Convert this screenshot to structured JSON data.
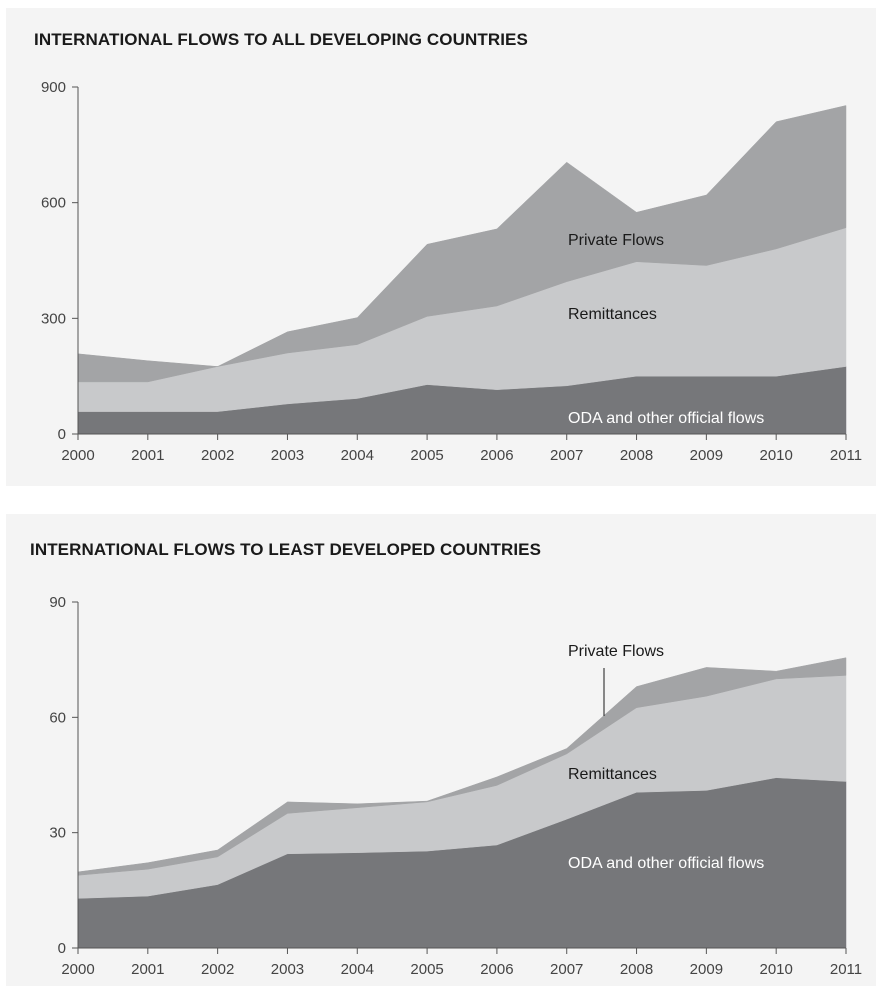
{
  "chart_data": [
    {
      "type": "area",
      "stacked": true,
      "title": "INTERNATIONAL FLOWS TO ALL DEVELOPING COUNTRIES",
      "x": [
        "2000",
        "2001",
        "2002",
        "2003",
        "2004",
        "2005",
        "2006",
        "2007",
        "2008",
        "2009",
        "2010",
        "2011"
      ],
      "yticks": [
        "0",
        "300",
        "600",
        "900"
      ],
      "ylim": [
        0,
        900
      ],
      "series": [
        {
          "name": "ODA and other official flows",
          "color": "#76777a",
          "values": [
            58,
            58,
            58,
            78,
            92,
            128,
            115,
            125,
            150,
            150,
            150,
            175
          ]
        },
        {
          "name": "Remittances",
          "color": "#c8c9cb",
          "values": [
            77,
            77,
            117,
            132,
            140,
            177,
            217,
            270,
            297,
            287,
            330,
            360
          ]
        },
        {
          "name": "Private Flows",
          "color": "#a3a4a6",
          "values": [
            73,
            55,
            0,
            55,
            70,
            187,
            200,
            310,
            128,
            183,
            330,
            317
          ]
        }
      ]
    },
    {
      "type": "area",
      "stacked": true,
      "title": "INTERNATIONAL FLOWS TO LEAST DEVELOPED COUNTRIES",
      "x": [
        "2000",
        "2001",
        "2002",
        "2003",
        "2004",
        "2005",
        "2006",
        "2007",
        "2008",
        "2009",
        "2010",
        "2011"
      ],
      "yticks": [
        "0",
        "30",
        "60",
        "90"
      ],
      "ylim": [
        0,
        90
      ],
      "series": [
        {
          "name": "ODA and other official flows",
          "color": "#76777a",
          "values": [
            12.9,
            13.5,
            16.5,
            24.5,
            24.8,
            25.2,
            26.8,
            33.5,
            40.5,
            41.0,
            44.3,
            43.3
          ]
        },
        {
          "name": "Remittances",
          "color": "#c8c9cb",
          "values": [
            6.0,
            7.0,
            7.2,
            10.5,
            11.7,
            12.8,
            15.5,
            17.0,
            22.0,
            24.5,
            25.7,
            27.6
          ]
        },
        {
          "name": "Private Flows",
          "color": "#a3a4a6",
          "values": [
            0.9,
            1.7,
            1.8,
            3.0,
            1.0,
            0.2,
            2.2,
            1.4,
            5.5,
            7.5,
            2.0,
            4.6
          ]
        }
      ]
    }
  ]
}
